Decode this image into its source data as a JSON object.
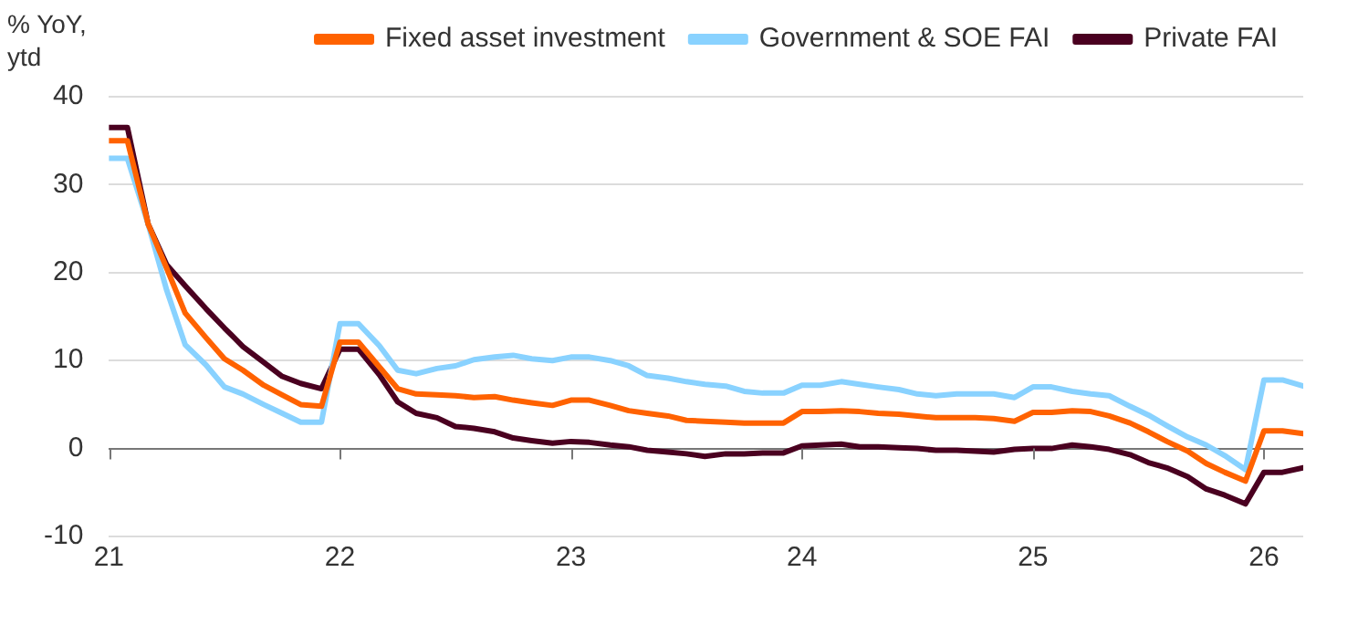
{
  "chart_data": {
    "type": "line",
    "ylabel": "% YoY, ytd",
    "x": [
      21,
      21.08,
      21.17,
      21.25,
      21.33,
      21.42,
      21.5,
      21.58,
      21.67,
      21.75,
      21.83,
      21.92,
      22,
      22.08,
      22.17,
      22.25,
      22.33,
      22.42,
      22.5,
      22.58,
      22.67,
      22.75,
      22.83,
      22.92,
      23,
      23.08,
      23.17,
      23.25,
      23.33,
      23.42,
      23.5,
      23.58,
      23.67,
      23.75,
      23.83,
      23.92,
      24,
      24.08,
      24.17,
      24.25,
      24.33,
      24.42,
      24.5,
      24.58,
      24.67,
      24.75,
      24.83,
      24.92,
      25,
      25.08,
      25.17,
      25.25,
      25.33,
      25.42,
      25.5,
      25.58,
      25.67,
      25.75,
      25.83,
      25.92,
      26,
      26.08,
      26.17
    ],
    "series": [
      {
        "name": "Fixed asset investment",
        "color": "#ff6200",
        "values": [
          35,
          35,
          25.5,
          20.5,
          15.4,
          12.6,
          10.2,
          8.9,
          7.2,
          6.1,
          5,
          4.8,
          12.1,
          12.1,
          9.3,
          6.8,
          6.2,
          6.1,
          6,
          5.8,
          5.9,
          5.5,
          5.2,
          4.9,
          5.5,
          5.5,
          4.9,
          4.3,
          4,
          3.7,
          3.2,
          3.1,
          3,
          2.9,
          2.9,
          2.9,
          4.2,
          4.2,
          4.3,
          4.2,
          4,
          3.9,
          3.7,
          3.5,
          3.5,
          3.5,
          3.4,
          3.1,
          4.1,
          4.1,
          4.3,
          4.2,
          3.7,
          2.9,
          1.9,
          0.8,
          -0.3,
          -1.7,
          -2.7,
          -3.7,
          2,
          2,
          1.7
        ]
      },
      {
        "name": "Government & SOE FAI",
        "color": "#89d2ff",
        "values": [
          33,
          33,
          25.5,
          18,
          11.8,
          9.5,
          7,
          6.2,
          5,
          4,
          3,
          3,
          14.2,
          14.2,
          11.7,
          8.9,
          8.5,
          9.1,
          9.4,
          10.1,
          10.4,
          10.6,
          10.2,
          10,
          10.4,
          10.4,
          10,
          9.4,
          8.3,
          8,
          7.6,
          7.3,
          7.1,
          6.5,
          6.3,
          6.3,
          7.2,
          7.2,
          7.6,
          7.3,
          7,
          6.7,
          6.2,
          6,
          6.2,
          6.2,
          6.2,
          5.8,
          7,
          7,
          6.5,
          6.2,
          6,
          4.8,
          3.8,
          2.6,
          1.3,
          0.4,
          -0.8,
          -2.4,
          7.8,
          7.8,
          7.1
        ]
      },
      {
        "name": "Private FAI",
        "color": "#4a0020",
        "values": [
          36.5,
          36.5,
          25.5,
          20.9,
          18.5,
          15.9,
          13.7,
          11.6,
          9.8,
          8.2,
          7.4,
          6.8,
          11.3,
          11.3,
          8.4,
          5.3,
          4,
          3.5,
          2.5,
          2.3,
          1.9,
          1.2,
          0.9,
          0.6,
          0.8,
          0.7,
          0.4,
          0.2,
          -0.2,
          -0.4,
          -0.6,
          -0.9,
          -0.6,
          -0.6,
          -0.5,
          -0.5,
          0.3,
          0.4,
          0.5,
          0.2,
          0.2,
          0.1,
          0,
          -0.2,
          -0.2,
          -0.3,
          -0.4,
          -0.1,
          0,
          0,
          0.4,
          0.2,
          -0.1,
          -0.7,
          -1.6,
          -2.2,
          -3.2,
          -4.6,
          -5.3,
          -6.3,
          -2.7,
          -2.7,
          -2.2
        ]
      }
    ],
    "xlim": [
      21,
      26.17
    ],
    "xticks": [
      21,
      22,
      23,
      24,
      25,
      26
    ],
    "ylim": [
      -10,
      40
    ],
    "yticks": [
      -10,
      0,
      10,
      20,
      30,
      40
    ],
    "grid": "y",
    "legend": "top",
    "line_style": "solid",
    "marker": "none"
  }
}
